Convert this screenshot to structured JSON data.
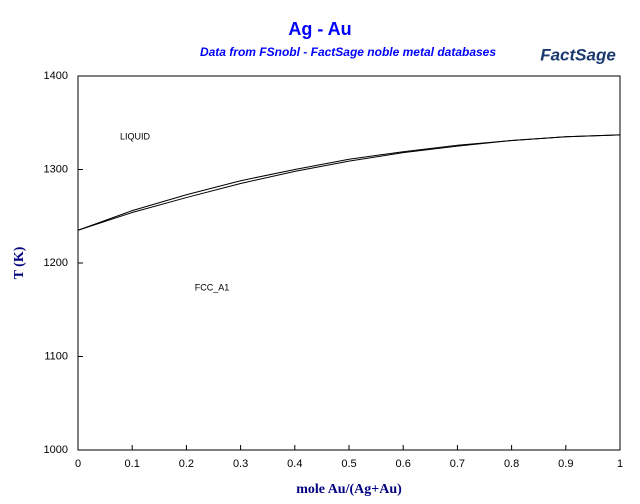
{
  "chart_data": {
    "type": "line",
    "title": "Ag - Au",
    "subtitle": "Data from FSnobl - FactSage noble metal databases",
    "logo": "FactSage",
    "x_label": "mole Au/(Ag+Au)",
    "y_label": "T (K)",
    "annotations": [
      "LIQUID",
      "FCC_A1"
    ],
    "x": [
      0,
      0.1,
      0.2,
      0.3,
      0.4,
      0.5,
      0.6,
      0.7,
      0.8,
      0.9,
      1
    ],
    "series": [
      {
        "color": "#000000",
        "values": [
          1235,
          1256,
          1273,
          1288,
          1300,
          1311,
          1319,
          1326,
          1331,
          1335,
          1337
        ]
      },
      {
        "color": "#000000",
        "values": [
          1235,
          1254,
          1270,
          1285,
          1298,
          1309,
          1318,
          1325,
          1331,
          1335,
          1337
        ]
      }
    ],
    "xlim": [
      0,
      1
    ],
    "ylim": [
      1000,
      1400
    ],
    "xticks": [
      0,
      0.1,
      0.2,
      0.3,
      0.4,
      0.5,
      0.6,
      0.7,
      0.8,
      0.9,
      1
    ],
    "yticks": [
      1000,
      1100,
      1200,
      1300,
      1400
    ]
  }
}
